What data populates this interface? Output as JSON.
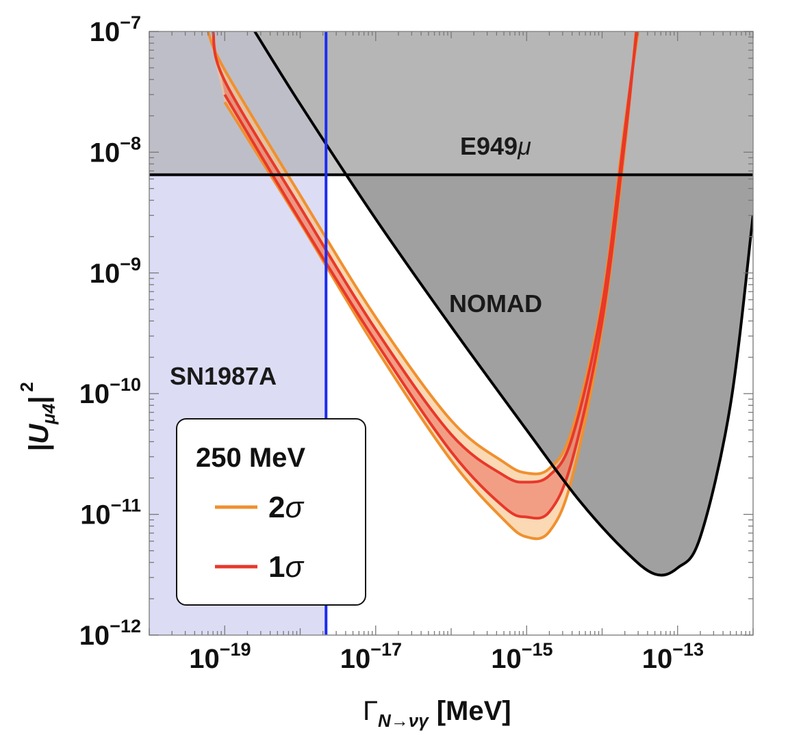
{
  "chart_data": {
    "type": "line",
    "xlabel_main": "Γ",
    "xlabel_sub": "N→νγ",
    "xlabel_unit": "[MeV]",
    "ylabel_main": "|U",
    "ylabel_sub": "μ4",
    "ylabel_close": "|",
    "ylabel_sup": "2",
    "x_scale": "log",
    "y_scale": "log",
    "xlim": [
      1e-20,
      1e-12
    ],
    "ylim": [
      1e-12,
      1e-07
    ],
    "x_ticks": [
      {
        "base": "10",
        "exp": "−19",
        "value": -19
      },
      {
        "base": "10",
        "exp": "−17",
        "value": -17
      },
      {
        "base": "10",
        "exp": "−15",
        "value": -15
      },
      {
        "base": "10",
        "exp": "−13",
        "value": -13
      }
    ],
    "y_ticks": [
      {
        "base": "10",
        "exp": "−7",
        "value": -7
      },
      {
        "base": "10",
        "exp": "−8",
        "value": -8
      },
      {
        "base": "10",
        "exp": "−9",
        "value": -9
      },
      {
        "base": "10",
        "exp": "−10",
        "value": -10
      },
      {
        "base": "10",
        "exp": "−11",
        "value": -11
      },
      {
        "base": "10",
        "exp": "−12",
        "value": -12
      }
    ],
    "regions": {
      "sn1987a": {
        "label": "SN1987A",
        "x_max": 2.2e-18,
        "color": "#dcdcf5"
      },
      "e949": {
        "label": "E949μ",
        "y_min": 6.5e-09,
        "color": "#c8c8c8"
      },
      "nomad": {
        "label": "NOMAD",
        "color": "#a0a0a0"
      }
    },
    "nomad_boundary": {
      "x": [
        2.5e-19,
        1e-18,
        1e-17,
        1e-16,
        1e-15,
        5e-15,
        2e-14,
        5e-14,
        1e-13,
        2e-13,
        5e-13,
        1e-12
      ],
      "y": [
        1e-07,
        2.5e-08,
        2.8e-09,
        3.6e-10,
        5e-11,
        1.3e-11,
        5e-12,
        3.2e-12,
        3.6e-12,
        6.5e-12,
        8e-11,
        3e-09
      ]
    },
    "series": [
      {
        "name": "2σ",
        "color": "#f0902f",
        "band": "outer",
        "upper": {
          "x": [
            6e-20,
            1e-19,
            1e-18,
            1e-17,
            1e-16,
            5e-16,
            1e-15,
            2e-15,
            4e-15,
            1e-14,
            2e-14,
            3e-14
          ],
          "y": [
            1e-07,
            4.8e-08,
            4.4e-09,
            4.3e-10,
            6e-11,
            2.7e-11,
            2.2e-11,
            2.4e-11,
            5e-11,
            6e-10,
            1.7e-08,
            1e-07
          ]
        },
        "lower": {
          "x": [
            1e-19,
            1e-18,
            1e-17,
            1e-16,
            5e-16,
            1e-15,
            2e-15,
            4e-15,
            1e-14,
            2e-14,
            2.8e-14
          ],
          "y": [
            2.6e-08,
            2.6e-09,
            2.4e-10,
            2.8e-11,
            9e-12,
            6.5e-12,
            7.2e-12,
            2e-11,
            3.5e-10,
            1.1e-08,
            1e-07
          ]
        }
      },
      {
        "name": "1σ",
        "color": "#e8382a",
        "band": "inner",
        "upper": {
          "x": [
            7e-20,
            1e-19,
            1e-18,
            1e-17,
            1e-16,
            5e-16,
            1e-15,
            2e-15,
            4e-15,
            1e-14,
            2e-14,
            2.9e-14
          ],
          "y": [
            1e-07,
            3.9e-08,
            3.5e-09,
            3.4e-10,
            4.6e-11,
            2.1e-11,
            1.85e-11,
            2.1e-11,
            4.3e-11,
            5.3e-10,
            1.5e-08,
            1e-07
          ]
        },
        "lower": {
          "x": [
            1e-19,
            1e-18,
            1e-17,
            1e-16,
            5e-16,
            1e-15,
            2e-15,
            4e-15,
            1e-14,
            2e-14,
            2.85e-14
          ],
          "y": [
            3e-08,
            2.7e-09,
            2.7e-10,
            3.3e-11,
            1.15e-11,
            9.5e-12,
            1.05e-11,
            2.8e-11,
            4e-10,
            1.25e-08,
            1e-07
          ]
        }
      }
    ],
    "legend": {
      "title": "250 MeV",
      "placement": "bottom-left"
    }
  }
}
